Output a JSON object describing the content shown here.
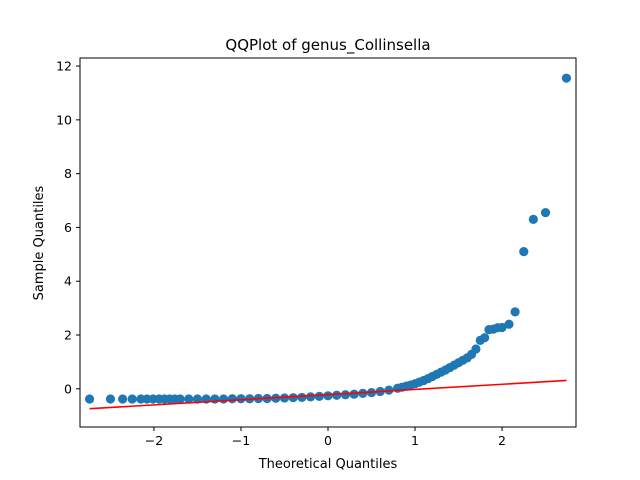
{
  "chart_data": {
    "type": "scatter",
    "title": "QQPlot of genus_Collinsella",
    "xlabel": "Theoretical Quantiles",
    "ylabel": "Sample Quantiles",
    "xlim": [
      -2.85,
      2.85
    ],
    "ylim": [
      -1.42,
      12.3
    ],
    "xticks": [
      -2,
      -1,
      0,
      1,
      2
    ],
    "xtick_labels": [
      "−2",
      "−1",
      "0",
      "1",
      "2"
    ],
    "yticks": [
      0,
      2,
      4,
      6,
      8,
      10,
      12
    ],
    "ytick_labels": [
      "0",
      "2",
      "4",
      "6",
      "8",
      "10",
      "12"
    ],
    "grid": false,
    "marker_color": "#1f77b4",
    "line_color": "#ff0000",
    "reference_line": {
      "x": [
        -2.74,
        2.74
      ],
      "y": [
        -0.74,
        0.31
      ]
    },
    "series": [
      {
        "name": "sample quantiles",
        "x": [
          -2.74,
          -2.5,
          -2.36,
          -2.25,
          -2.15,
          -2.08,
          -2.01,
          -1.94,
          -1.88,
          -1.82,
          -1.76,
          -1.7,
          -1.6,
          -1.5,
          -1.4,
          -1.3,
          -1.2,
          -1.1,
          -1.0,
          -0.9,
          -0.8,
          -0.7,
          -0.6,
          -0.5,
          -0.4,
          -0.3,
          -0.2,
          -0.1,
          0.0,
          0.1,
          0.2,
          0.3,
          0.4,
          0.5,
          0.6,
          0.7,
          0.8,
          0.85,
          0.9,
          0.95,
          1.0,
          1.05,
          1.1,
          1.15,
          1.2,
          1.25,
          1.3,
          1.35,
          1.4,
          1.45,
          1.5,
          1.55,
          1.6,
          1.65,
          1.7,
          1.75,
          1.8,
          1.85,
          1.9,
          1.95,
          2.0,
          2.08,
          2.15,
          2.25,
          2.36,
          2.5,
          2.74
        ],
        "y": [
          -0.38,
          -0.38,
          -0.38,
          -0.38,
          -0.38,
          -0.38,
          -0.38,
          -0.38,
          -0.38,
          -0.38,
          -0.38,
          -0.38,
          -0.38,
          -0.38,
          -0.38,
          -0.38,
          -0.38,
          -0.37,
          -0.37,
          -0.37,
          -0.36,
          -0.36,
          -0.35,
          -0.34,
          -0.33,
          -0.32,
          -0.3,
          -0.28,
          -0.26,
          -0.24,
          -0.22,
          -0.2,
          -0.17,
          -0.14,
          -0.1,
          -0.05,
          0.02,
          0.06,
          0.1,
          0.14,
          0.19,
          0.25,
          0.31,
          0.38,
          0.46,
          0.54,
          0.62,
          0.7,
          0.79,
          0.88,
          0.97,
          1.06,
          1.15,
          1.28,
          1.48,
          1.8,
          1.9,
          2.2,
          2.22,
          2.27,
          2.28,
          2.4,
          2.86,
          5.1,
          6.3,
          6.55,
          11.55
        ]
      }
    ]
  }
}
